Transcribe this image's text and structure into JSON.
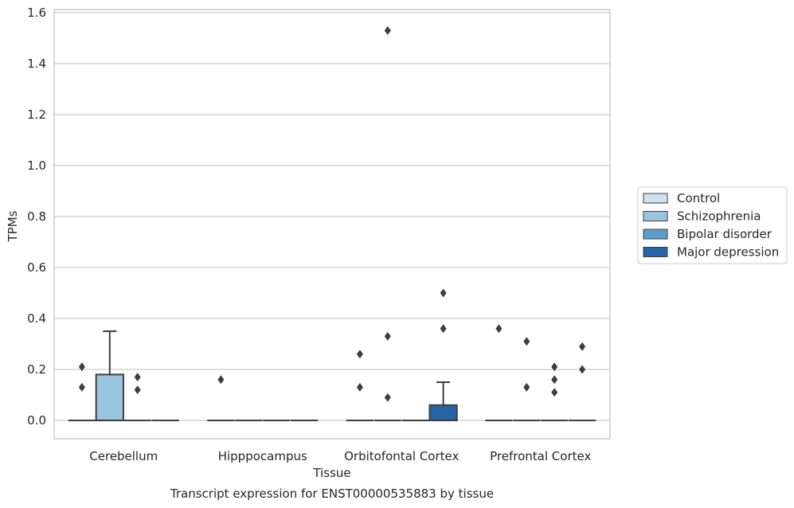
{
  "chart_data": {
    "type": "box",
    "title": "",
    "caption": "Transcript expression for ENST00000535883 by tissue",
    "xlabel": "Tissue",
    "ylabel": "TPMs",
    "ylim": [
      -0.07,
      1.61
    ],
    "yticks": [
      0.0,
      0.2,
      0.4,
      0.6,
      0.8,
      1.0,
      1.2,
      1.4,
      1.6
    ],
    "ytick_labels": [
      "0.0",
      "0.2",
      "0.4",
      "0.6",
      "0.8",
      "1.0",
      "1.2",
      "1.4",
      "1.6"
    ],
    "grid": true,
    "legend_position": "right",
    "categories": [
      "Cerebellum",
      "Hipppocampus",
      "Orbitofontal Cortex",
      "Prefrontal Cortex"
    ],
    "series": [
      {
        "name": "Control",
        "color": "#d0e1f2",
        "boxes": [
          {
            "q1": 0.0,
            "median": 0.0,
            "q3": 0.0,
            "whisker_low": 0.0,
            "whisker_high": 0.0,
            "outliers": [
              0.21,
              0.13
            ]
          },
          {
            "q1": 0.0,
            "median": 0.0,
            "q3": 0.0,
            "whisker_low": 0.0,
            "whisker_high": 0.0,
            "outliers": [
              0.16
            ]
          },
          {
            "q1": 0.0,
            "median": 0.0,
            "q3": 0.0,
            "whisker_low": 0.0,
            "whisker_high": 0.0,
            "outliers": [
              0.26,
              0.13
            ]
          },
          {
            "q1": 0.0,
            "median": 0.0,
            "q3": 0.0,
            "whisker_low": 0.0,
            "whisker_high": 0.0,
            "outliers": [
              0.36
            ]
          }
        ]
      },
      {
        "name": "Schizophrenia",
        "color": "#9ac5de",
        "boxes": [
          {
            "q1": 0.0,
            "median": 0.0,
            "q3": 0.18,
            "whisker_low": 0.0,
            "whisker_high": 0.35,
            "outliers": []
          },
          {
            "q1": 0.0,
            "median": 0.0,
            "q3": 0.0,
            "whisker_low": 0.0,
            "whisker_high": 0.0,
            "outliers": []
          },
          {
            "q1": 0.0,
            "median": 0.0,
            "q3": 0.0,
            "whisker_low": 0.0,
            "whisker_high": 0.0,
            "outliers": [
              1.53,
              0.33,
              0.09
            ]
          },
          {
            "q1": 0.0,
            "median": 0.0,
            "q3": 0.0,
            "whisker_low": 0.0,
            "whisker_high": 0.0,
            "outliers": [
              0.31,
              0.13
            ]
          }
        ]
      },
      {
        "name": "Bipolar disorder",
        "color": "#5b9dcb",
        "boxes": [
          {
            "q1": 0.0,
            "median": 0.0,
            "q3": 0.0,
            "whisker_low": 0.0,
            "whisker_high": 0.0,
            "outliers": [
              0.17,
              0.12
            ]
          },
          {
            "q1": 0.0,
            "median": 0.0,
            "q3": 0.0,
            "whisker_low": 0.0,
            "whisker_high": 0.0,
            "outliers": []
          },
          {
            "q1": 0.0,
            "median": 0.0,
            "q3": 0.0,
            "whisker_low": 0.0,
            "whisker_high": 0.0,
            "outliers": []
          },
          {
            "q1": 0.0,
            "median": 0.0,
            "q3": 0.0,
            "whisker_low": 0.0,
            "whisker_high": 0.0,
            "outliers": [
              0.21,
              0.16,
              0.11
            ]
          }
        ]
      },
      {
        "name": "Major depression",
        "color": "#2565a6",
        "boxes": [
          {
            "q1": 0.0,
            "median": 0.0,
            "q3": 0.0,
            "whisker_low": 0.0,
            "whisker_high": 0.0,
            "outliers": []
          },
          {
            "q1": 0.0,
            "median": 0.0,
            "q3": 0.0,
            "whisker_low": 0.0,
            "whisker_high": 0.0,
            "outliers": []
          },
          {
            "q1": 0.0,
            "median": 0.0,
            "q3": 0.06,
            "whisker_low": 0.0,
            "whisker_high": 0.15,
            "outliers": [
              0.5,
              0.36
            ]
          },
          {
            "q1": 0.0,
            "median": 0.0,
            "q3": 0.0,
            "whisker_low": 0.0,
            "whisker_high": 0.0,
            "outliers": [
              0.29,
              0.2
            ]
          }
        ]
      }
    ]
  }
}
